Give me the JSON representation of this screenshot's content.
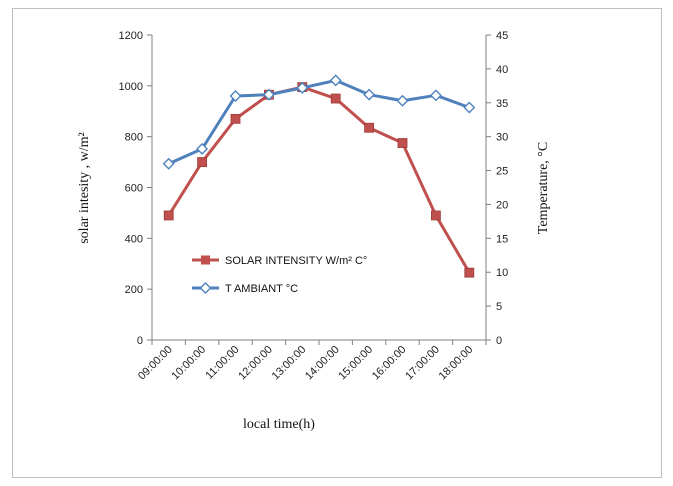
{
  "chart_data": {
    "type": "line",
    "categories": [
      "09:00:00",
      "10:00:00",
      "11:00:00",
      "12:00:00",
      "13:00:00",
      "14:00:00",
      "15:00:00",
      "16:00:00",
      "17:00:00",
      "18:00:00"
    ],
    "xlabel": "local time(h)",
    "ylabel_left": "solar  intesity , w/m²",
    "ylabel_right": "Temperature, °C",
    "ylim_left": [
      0,
      1200
    ],
    "yticks_left": [
      0,
      200,
      400,
      600,
      800,
      1000,
      1200
    ],
    "ylim_right": [
      0,
      45
    ],
    "yticks_right": [
      0,
      5,
      10,
      15,
      20,
      25,
      30,
      35,
      40,
      45
    ],
    "grid": false,
    "legend_position": "center-left inside plot",
    "series": [
      {
        "name": "SOLAR INTENSITY  W/m² C°",
        "axis": "left",
        "color": "#c0504d",
        "marker": "square",
        "values": [
          490,
          700,
          870,
          965,
          995,
          950,
          835,
          775,
          490,
          265
        ]
      },
      {
        "name": "T AMBIANT °C",
        "axis": "right",
        "color": "#4f81bd",
        "marker": "diamond",
        "values": [
          26,
          28.2,
          36,
          36.2,
          37.2,
          38.3,
          36.2,
          35.3,
          36.1,
          34.3
        ]
      }
    ]
  }
}
